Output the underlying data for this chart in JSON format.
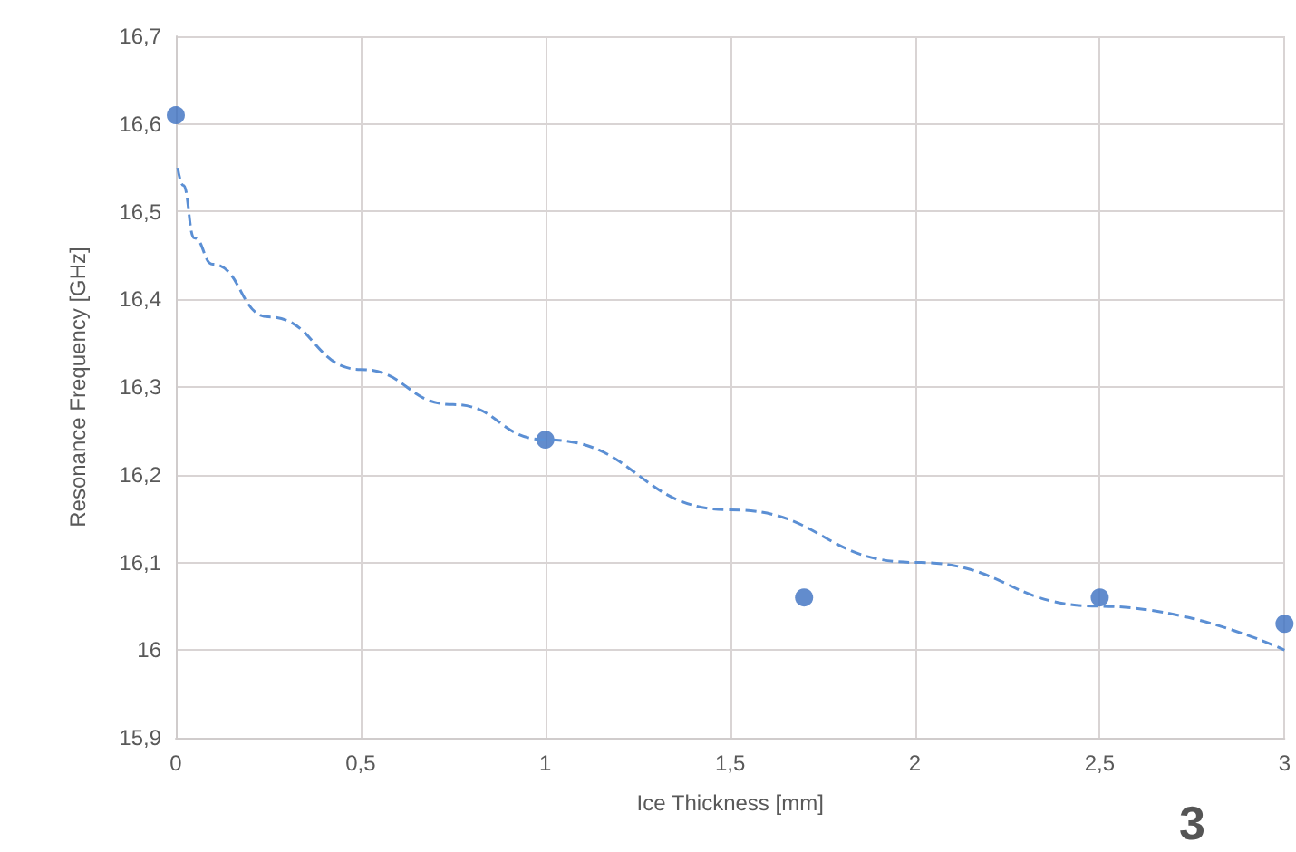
{
  "chart_data": {
    "type": "scatter",
    "xlabel": "Ice Thickness [mm]",
    "ylabel": "Resonance Frequency [GHz]",
    "annotations": [
      "3"
    ],
    "xlim": [
      0,
      3
    ],
    "xticks": [
      {
        "value": 0,
        "label": "0"
      },
      {
        "value": 0.5,
        "label": "0,5"
      },
      {
        "value": 1,
        "label": "1"
      },
      {
        "value": 1.5,
        "label": "1,5"
      },
      {
        "value": 2,
        "label": "2"
      },
      {
        "value": 2.5,
        "label": "2,5"
      },
      {
        "value": 3,
        "label": "3"
      }
    ],
    "ylim": [
      15.9,
      16.7
    ],
    "yticks": [
      {
        "value": 15.9,
        "label": "15,9"
      },
      {
        "value": 16,
        "label": "16"
      },
      {
        "value": 16.1,
        "label": "16,1"
      },
      {
        "value": 16.2,
        "label": "16,2"
      },
      {
        "value": 16.3,
        "label": "16,3"
      },
      {
        "value": 16.4,
        "label": "16,4"
      },
      {
        "value": 16.5,
        "label": "16,5"
      },
      {
        "value": 16.6,
        "label": "16,6"
      },
      {
        "value": 16.7,
        "label": "16,7"
      }
    ],
    "grid": true,
    "series": [
      {
        "color": "#3b6fc0",
        "marker": "circle",
        "x": [
          0,
          1,
          1.7,
          2.5,
          3
        ],
        "values": [
          16.61,
          16.24,
          16.06,
          16.06,
          16.03
        ]
      },
      {
        "type": "line",
        "color": "#5b8fd4",
        "marker": "none",
        "line_style": "dashed",
        "x": [
          0.005,
          0.02,
          0.05,
          0.1,
          0.25,
          0.5,
          0.75,
          1,
          1.5,
          2,
          2.5,
          3
        ],
        "values": [
          16.55,
          16.53,
          16.47,
          16.44,
          16.38,
          16.32,
          16.28,
          16.24,
          16.16,
          16.1,
          16.05,
          16
        ]
      }
    ]
  }
}
